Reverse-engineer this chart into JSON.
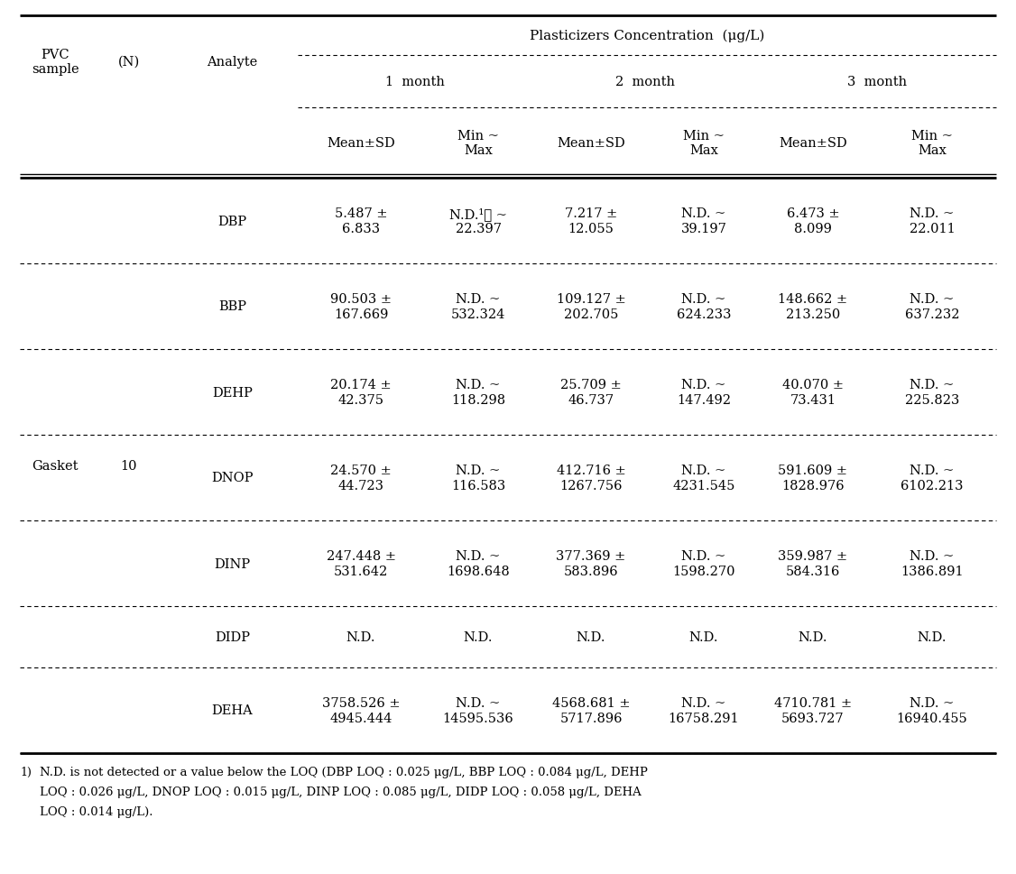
{
  "title": "Plasticizers Concentration  (μg/L)",
  "sample_label": "Gasket",
  "n_label": "10",
  "col_headers_left": [
    "PVC\nsample",
    "(N)",
    "Analyte"
  ],
  "month_headers": [
    "1  month",
    "2  month",
    "3  month"
  ],
  "sub_headers": [
    "Mean±SD",
    "Min ~\nMax"
  ],
  "data": [
    [
      "DBP",
      "5.487 ±\n6.833",
      "N.D.¹⦾ ~\n22.397",
      "7.217 ±\n12.055",
      "N.D. ~\n39.197",
      "6.473 ±\n8.099",
      "N.D. ~\n22.011"
    ],
    [
      "BBP",
      "90.503 ±\n167.669",
      "N.D. ~\n532.324",
      "109.127 ±\n202.705",
      "N.D. ~\n624.233",
      "148.662 ±\n213.250",
      "N.D. ~\n637.232"
    ],
    [
      "DEHP",
      "20.174 ±\n42.375",
      "N.D. ~\n118.298",
      "25.709 ±\n46.737",
      "N.D. ~\n147.492",
      "40.070 ±\n73.431",
      "N.D. ~\n225.823"
    ],
    [
      "DNOP",
      "24.570 ±\n44.723",
      "N.D. ~\n116.583",
      "412.716 ±\n1267.756",
      "N.D. ~\n4231.545",
      "591.609 ±\n1828.976",
      "N.D. ~\n6102.213"
    ],
    [
      "DINP",
      "247.448 ±\n531.642",
      "N.D. ~\n1698.648",
      "377.369 ±\n583.896",
      "N.D. ~\n1598.270",
      "359.987 ±\n584.316",
      "N.D. ~\n1386.891"
    ],
    [
      "DIDP",
      "N.D.",
      "N.D.",
      "N.D.",
      "N.D.",
      "N.D.",
      "N.D."
    ],
    [
      "DEHA",
      "3758.526 ±\n4945.444",
      "N.D. ~\n14595.536",
      "4568.681 ±\n5717.896",
      "N.D. ~\n16758.291",
      "4710.781 ±\n5693.727",
      "N.D. ~\n16940.455"
    ]
  ],
  "footnote_marker": "1)",
  "footnote_text": "N.D. is not detected or a value below the LOQ (DBP LOQ : 0.025 μg/L, BBP LOQ : 0.084 μg/L, DEHP\nLOQ : 0.026 μg/L, DNOP LOQ : 0.015 μg/L, DINP LOQ : 0.085 μg/L, DIDP LOQ : 0.058 μg/L, DEHA\nLOQ : 0.014 μg/L).",
  "bg_color": "#ffffff",
  "text_color": "#000000",
  "line_color": "#000000",
  "font_size": 10.5
}
